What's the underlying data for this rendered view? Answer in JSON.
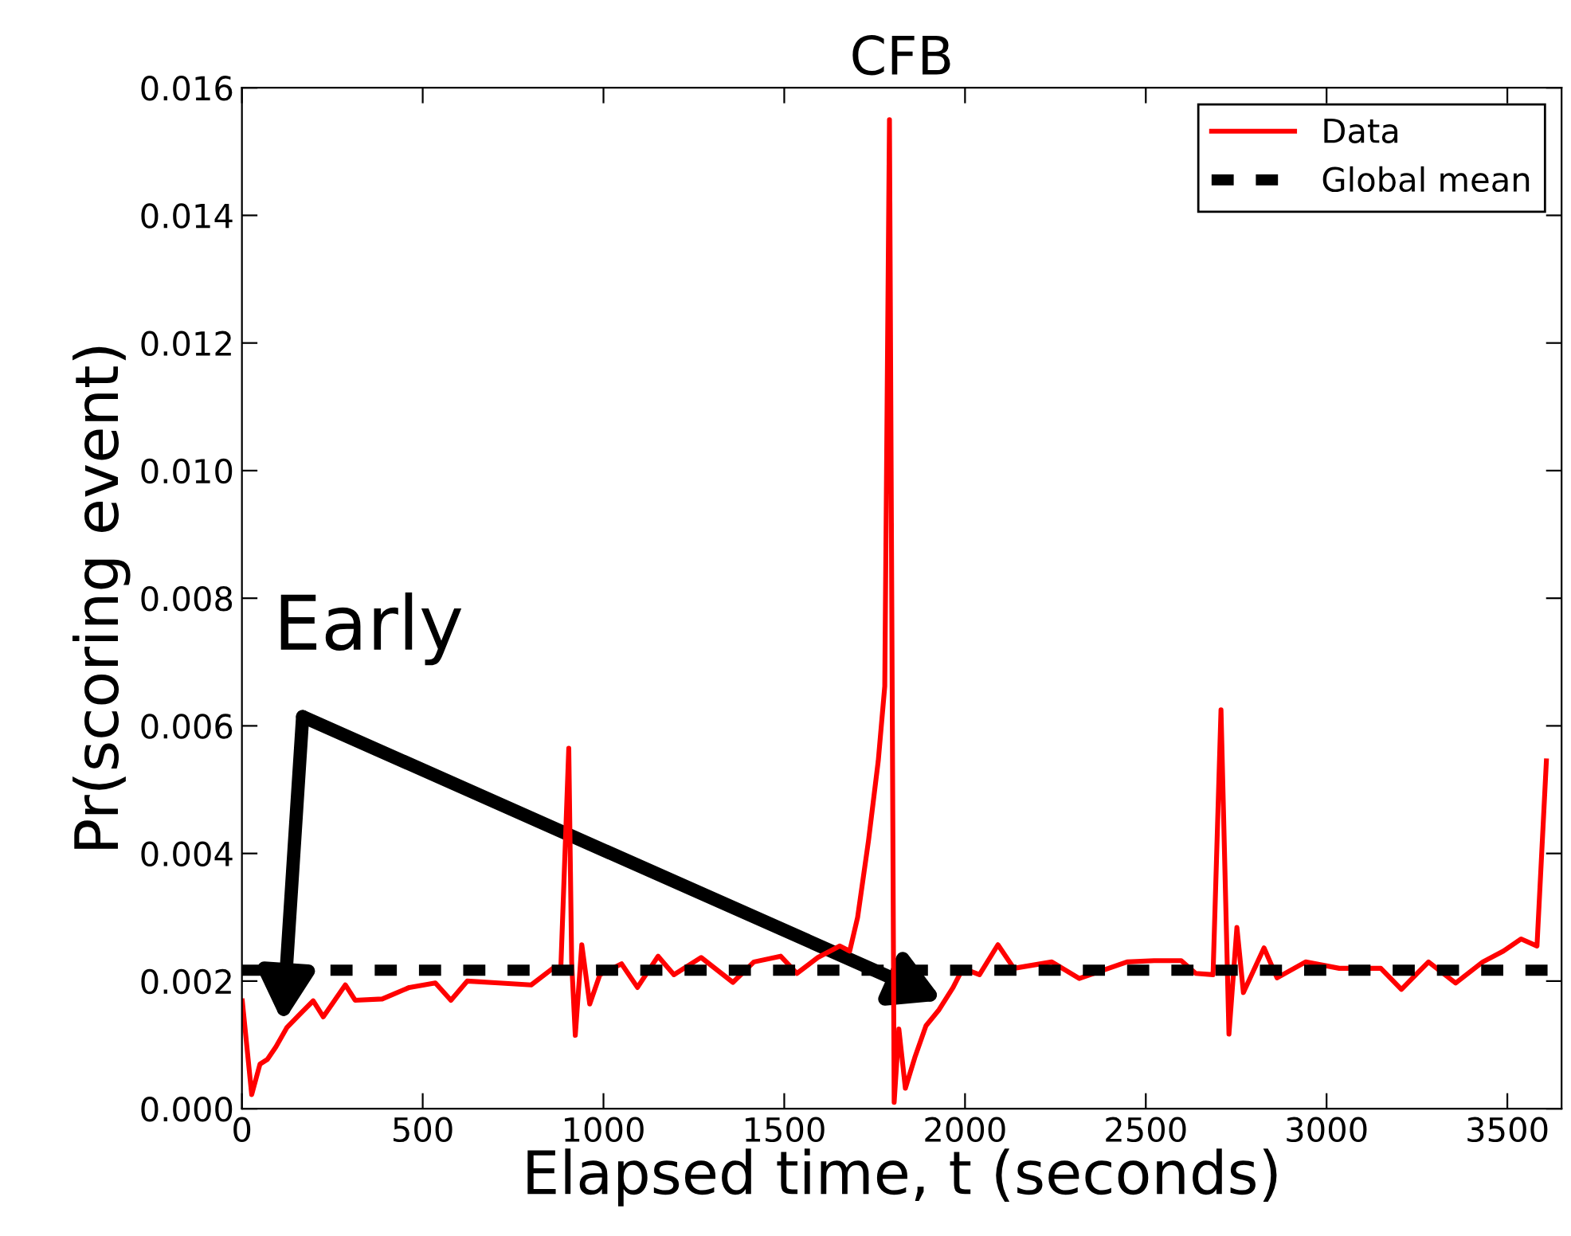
{
  "chart_data": {
    "type": "line",
    "title": "CFB",
    "xlabel": "Elapsed time, t (seconds)",
    "ylabel": "Pr(scoring event)",
    "annotations": [
      "Early"
    ],
    "xlim": [
      0,
      3650
    ],
    "xticks": [
      0,
      500,
      1000,
      1500,
      2000,
      2500,
      3000,
      3500
    ],
    "ylim": [
      0,
      0.016
    ],
    "yticks": [
      {
        "value": 0,
        "label": "0.000"
      },
      {
        "value": 0.002,
        "label": "0.002"
      },
      {
        "value": 0.004,
        "label": "0.004"
      },
      {
        "value": 0.006,
        "label": "0.006"
      },
      {
        "value": 0.008,
        "label": "0.008"
      },
      {
        "value": 0.01,
        "label": "0.010"
      },
      {
        "value": 0.012,
        "label": "0.012"
      },
      {
        "value": 0.014,
        "label": "0.014"
      },
      {
        "value": 0.016,
        "label": "0.016"
      }
    ],
    "grid": false,
    "legend": "top right",
    "line_style": "solid",
    "marker": "none",
    "ref_lines": [
      {
        "axis": "y",
        "value": 0.00217,
        "label": "Global mean",
        "color": "#000000",
        "line_style": "dashed"
      }
    ],
    "series": [
      {
        "name": "Data",
        "color": "#ff0000",
        "x": [
          1,
          27,
          50,
          70,
          94,
          124,
          153,
          197,
          225,
          286,
          313,
          388,
          463,
          535,
          578,
          623,
          710,
          800,
          860,
          882,
          904,
          912,
          922,
          940,
          962,
          990,
          1050,
          1094,
          1151,
          1195,
          1270,
          1358,
          1416,
          1490,
          1535,
          1593,
          1654,
          1681,
          1703,
          1733,
          1760,
          1778,
          1791,
          1804,
          1817,
          1835,
          1861,
          1892,
          1928,
          1967,
          1994,
          2040,
          2091,
          2135,
          2240,
          2316,
          2448,
          2523,
          2598,
          2638,
          2686,
          2708,
          2730,
          2752,
          2770,
          2827,
          2863,
          2942,
          3035,
          3150,
          3207,
          3282,
          3357,
          3432,
          3489,
          3538,
          3582,
          3608
        ],
        "values": [
          0.00169,
          0.00022,
          0.0007,
          0.00077,
          0.00097,
          0.00127,
          0.00144,
          0.00169,
          0.00144,
          0.00194,
          0.0017,
          0.00172,
          0.0019,
          0.00197,
          0.0017,
          0.002,
          0.00197,
          0.00194,
          0.0022,
          0.0022,
          0.00565,
          0.0023,
          0.00115,
          0.00257,
          0.00164,
          0.0021,
          0.00227,
          0.0019,
          0.00239,
          0.0021,
          0.00237,
          0.00198,
          0.0023,
          0.00239,
          0.00212,
          0.00237,
          0.00255,
          0.00247,
          0.003,
          0.0042,
          0.00545,
          0.00662,
          0.0155,
          0.0001,
          0.00125,
          0.00032,
          0.0008,
          0.0013,
          0.00155,
          0.0019,
          0.0022,
          0.0021,
          0.00257,
          0.0022,
          0.0023,
          0.00204,
          0.0023,
          0.00232,
          0.00232,
          0.00212,
          0.0021,
          0.00625,
          0.00117,
          0.00284,
          0.00182,
          0.00252,
          0.00205,
          0.0023,
          0.0022,
          0.0022,
          0.00187,
          0.0023,
          0.00197,
          0.0023,
          0.00247,
          0.00266,
          0.00255,
          0.00545
        ]
      }
    ]
  }
}
